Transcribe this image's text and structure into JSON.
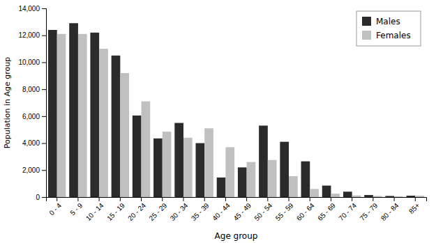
{
  "chart_data": {
    "type": "bar",
    "x_label": "Age group",
    "y_label": "Population in Age group",
    "categories": [
      "0 - 4",
      "5 - 9",
      "10 - 14",
      "15 - 19",
      "20 - 24",
      "25 - 29",
      "30 - 34",
      "35 - 39",
      "40 - 44",
      "45 - 49",
      "50 - 54",
      "55 - 59",
      "60 - 64",
      "65 - 69",
      "70 - 74",
      "75 - 79",
      "80 - 84",
      "85+"
    ],
    "series": [
      {
        "name": "Males",
        "color": "#2b2b2b",
        "values": [
          12400,
          12900,
          12200,
          10500,
          6050,
          4350,
          5500,
          4000,
          1450,
          2200,
          5300,
          4100,
          2650,
          850,
          400,
          150,
          80,
          100
        ]
      },
      {
        "name": "Females",
        "color": "#c0c0c0",
        "values": [
          12100,
          12100,
          11000,
          9200,
          7100,
          4850,
          4400,
          5100,
          3700,
          2600,
          2750,
          1550,
          600,
          250,
          120,
          80,
          50,
          100
        ]
      }
    ],
    "ylim": [
      0,
      14000
    ],
    "yticks": [
      0,
      {
        "value": 2000,
        "label": "2,000"
      },
      {
        "value": 4000,
        "label": "4,000"
      },
      {
        "value": 6000,
        "label": "6,000"
      },
      {
        "value": 8000,
        "label": "8,000"
      },
      {
        "value": 10000,
        "label": "10,000"
      },
      {
        "value": 12000,
        "label": "12,000"
      },
      {
        "value": 14000,
        "label": "14,000"
      }
    ],
    "grid": false,
    "legend": "upper-right"
  }
}
